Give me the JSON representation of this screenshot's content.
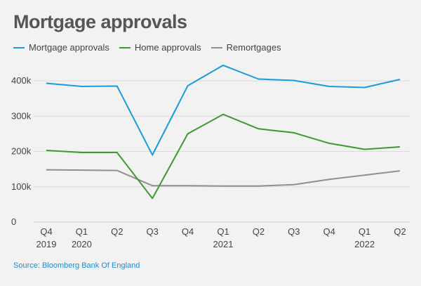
{
  "chart_data": {
    "type": "line",
    "title": "Mortgage approvals",
    "categories": [
      "Q4 2019",
      "Q1 2020",
      "Q2 2020",
      "Q3 2020",
      "Q4 2020",
      "Q1 2021",
      "Q2 2021",
      "Q3 2021",
      "Q4 2021",
      "Q1 2022",
      "Q2 2022"
    ],
    "x_tick_labels": [
      {
        "q": "Q4",
        "year": "2019"
      },
      {
        "q": "Q1",
        "year": "2020"
      },
      {
        "q": "Q2",
        "year": ""
      },
      {
        "q": "Q3",
        "year": ""
      },
      {
        "q": "Q4",
        "year": ""
      },
      {
        "q": "Q1",
        "year": "2021"
      },
      {
        "q": "Q2",
        "year": ""
      },
      {
        "q": "Q3",
        "year": ""
      },
      {
        "q": "Q4",
        "year": ""
      },
      {
        "q": "Q1",
        "year": "2022"
      },
      {
        "q": "Q2",
        "year": ""
      }
    ],
    "ylim": [
      0,
      450000
    ],
    "y_ticks": [
      {
        "value": 0,
        "label": "0"
      },
      {
        "value": 100000,
        "label": "100k"
      },
      {
        "value": 200000,
        "label": "200k"
      },
      {
        "value": 300000,
        "label": "300k"
      },
      {
        "value": 400000,
        "label": "400k"
      }
    ],
    "grid": true,
    "legend_position": "top-left",
    "series": [
      {
        "name": "Mortgage approvals",
        "color": "#1a9bde",
        "values": [
          393000,
          384000,
          385000,
          190000,
          386000,
          444000,
          405000,
          401000,
          384000,
          381000,
          404000
        ]
      },
      {
        "name": "Home approvals",
        "color": "#3c9a2e",
        "values": [
          203000,
          197000,
          197000,
          67000,
          250000,
          305000,
          264000,
          253000,
          223000,
          206000,
          213000
        ]
      },
      {
        "name": "Remortgages",
        "color": "#8f8f8f",
        "values": [
          148000,
          147000,
          146000,
          103000,
          103000,
          102000,
          102000,
          106000,
          121000,
          133000,
          145000
        ]
      }
    ]
  },
  "source": "Source: Bloomberg Bank Of England"
}
